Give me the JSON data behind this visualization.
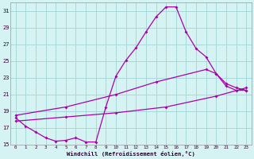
{
  "xlabel": "Windchill (Refroidissement éolien,°C)",
  "background_color": "#d6f3f3",
  "grid_color": "#a8d8d8",
  "line_color": "#aa00aa",
  "xlim": [
    -0.5,
    23.5
  ],
  "ylim": [
    15,
    32
  ],
  "yticks": [
    15,
    17,
    19,
    21,
    23,
    25,
    27,
    29,
    31
  ],
  "xticks": [
    0,
    1,
    2,
    3,
    4,
    5,
    6,
    7,
    8,
    9,
    10,
    11,
    12,
    13,
    14,
    15,
    16,
    17,
    18,
    19,
    20,
    21,
    22,
    23
  ],
  "line1_x": [
    0,
    1,
    2,
    3,
    4,
    5,
    6,
    7,
    8,
    9,
    10,
    11,
    12,
    13,
    14,
    15,
    16,
    17,
    18,
    19,
    20,
    21,
    22,
    23
  ],
  "line1_y": [
    18.2,
    17.2,
    16.5,
    15.8,
    15.4,
    15.5,
    15.8,
    15.3,
    15.3,
    19.5,
    23.2,
    25.1,
    26.6,
    28.5,
    30.3,
    31.5,
    31.5,
    28.5,
    26.5,
    25.5,
    23.5,
    22.0,
    21.5,
    21.5
  ],
  "line2_x": [
    0,
    5,
    10,
    14,
    19,
    20,
    21,
    22,
    23
  ],
  "line2_y": [
    18.5,
    19.5,
    21.0,
    22.5,
    24.0,
    23.5,
    22.3,
    21.8,
    21.5
  ],
  "line3_x": [
    0,
    5,
    10,
    15,
    20,
    23
  ],
  "line3_y": [
    17.8,
    18.3,
    18.8,
    19.5,
    20.8,
    21.8
  ]
}
